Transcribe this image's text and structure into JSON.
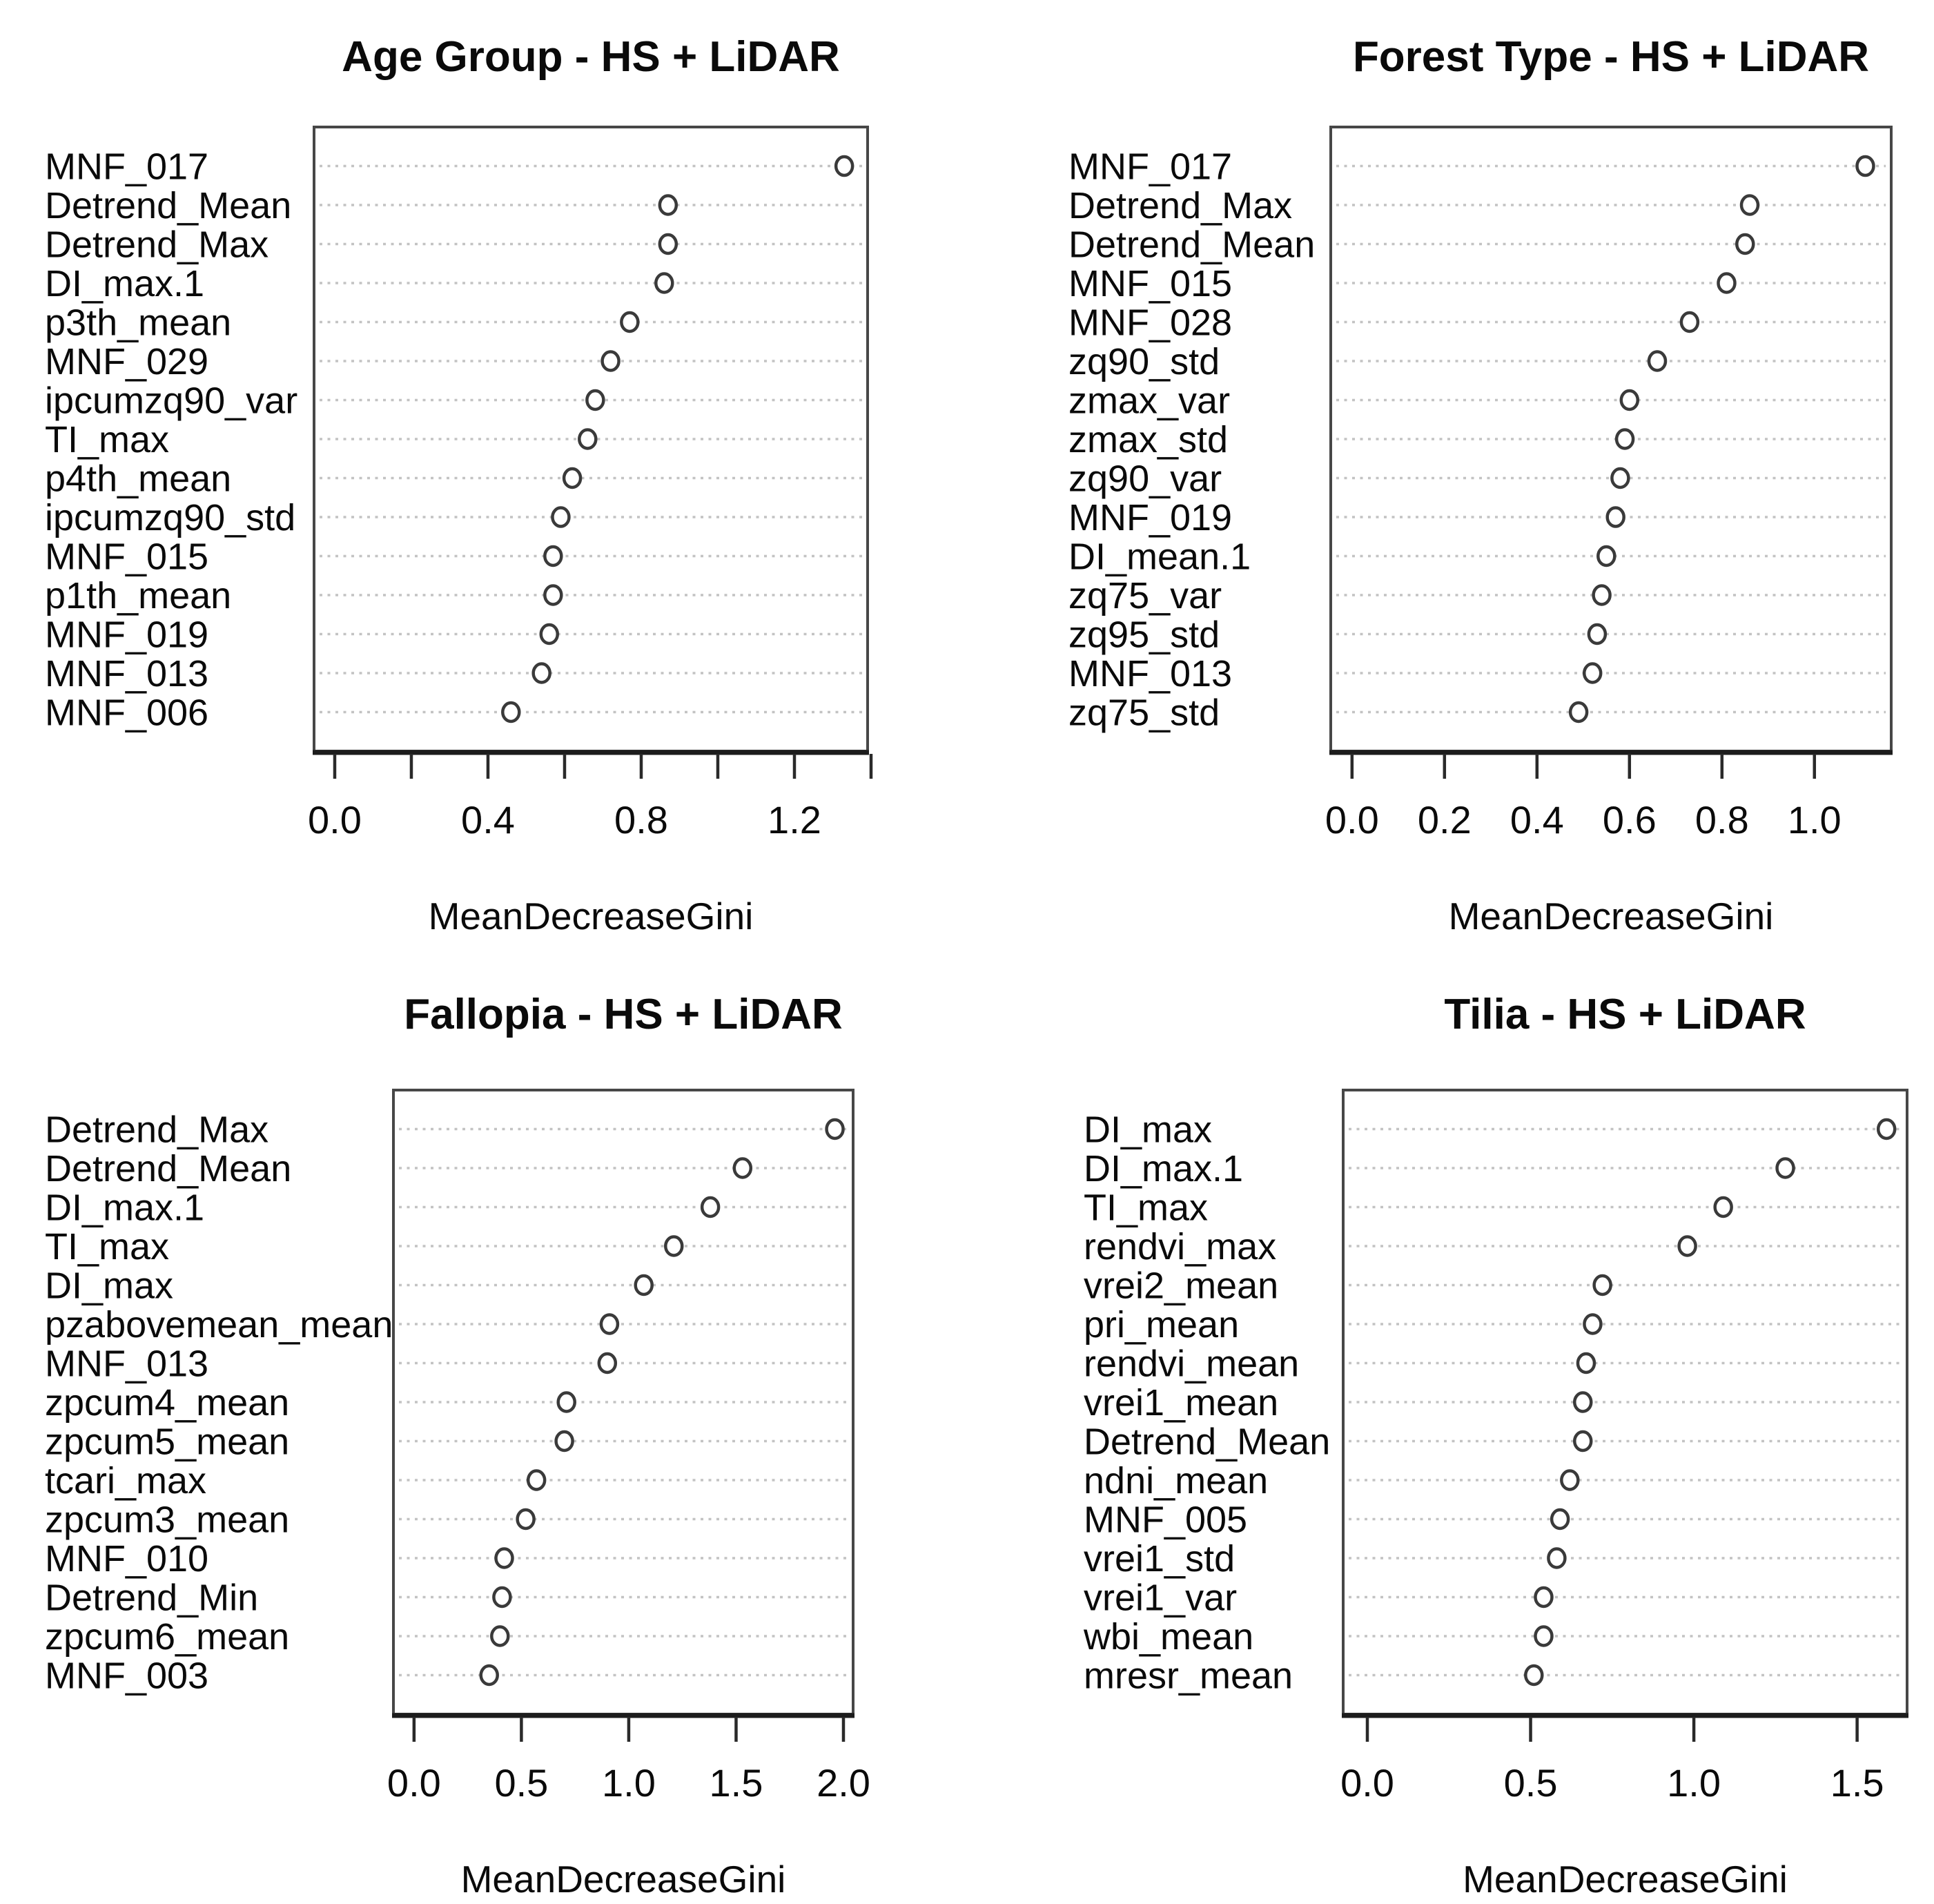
{
  "figure": {
    "layout": "2x2 dot charts",
    "shared_xlabel": "MeanDecreaseGini"
  },
  "colors": {
    "background": "#ffffff",
    "text": "#0a0a0a",
    "dot_stroke": "#3a3a3a",
    "dot_fill": "#ffffff",
    "gridline": "#c3c3c3",
    "box_border": "#474747",
    "axis_line": "#1c1c1c",
    "tick": "#2a2a2a"
  },
  "chart_data": [
    {
      "type": "scatter",
      "variant": "dot_chart",
      "title": "Age Group - HS + LiDAR",
      "xlabel": "MeanDecreaseGini",
      "ylabel": "",
      "grid": "horizontal-dotted",
      "legend": "none",
      "categories": [
        "MNF_017",
        "Detrend_Mean",
        "Detrend_Max",
        "DI_max.1",
        "p3th_mean",
        "MNF_029",
        "ipcumzq90_var",
        "TI_max",
        "p4th_mean",
        "ipcumzq90_std",
        "MNF_015",
        "p1th_mean",
        "MNF_019",
        "MNF_013",
        "MNF_006"
      ],
      "values": [
        1.33,
        0.87,
        0.87,
        0.86,
        0.77,
        0.72,
        0.68,
        0.66,
        0.62,
        0.59,
        0.57,
        0.57,
        0.56,
        0.54,
        0.46
      ],
      "xlim": [
        -0.054,
        1.391
      ],
      "xticks": [
        0,
        0.2,
        0.4,
        0.6,
        0.8,
        1,
        1.2,
        1.4
      ],
      "xtick_labels": [
        "0.0",
        "",
        "0.4",
        "",
        "0.8",
        "",
        "1.2",
        ""
      ]
    },
    {
      "type": "scatter",
      "variant": "dot_chart",
      "title": "Forest Type - HS + LiDAR",
      "xlabel": "MeanDecreaseGini",
      "ylabel": "",
      "grid": "horizontal-dotted",
      "legend": "none",
      "categories": [
        "MNF_017",
        "Detrend_Max",
        "Detrend_Mean",
        "MNF_015",
        "MNF_028",
        "zq90_std",
        "zmax_var",
        "zmax_std",
        "zq90_var",
        "MNF_019",
        "DI_mean.1",
        "zq75_var",
        "zq95_std",
        "MNF_013",
        "zq75_std"
      ],
      "values": [
        1.11,
        0.86,
        0.85,
        0.81,
        0.73,
        0.66,
        0.6,
        0.59,
        0.58,
        0.57,
        0.55,
        0.54,
        0.53,
        0.52,
        0.49
      ],
      "xlim": [
        -0.046,
        1.166
      ],
      "xticks": [
        0,
        0.2,
        0.4,
        0.6,
        0.8,
        1
      ],
      "xtick_labels": [
        "0.0",
        "0.2",
        "0.4",
        "0.6",
        "0.8",
        "1.0"
      ]
    },
    {
      "type": "scatter",
      "variant": "dot_chart",
      "title": "Fallopia - HS + LiDAR",
      "xlabel": "MeanDecreaseGini",
      "ylabel": "",
      "grid": "horizontal-dotted",
      "legend": "none",
      "categories": [
        "Detrend_Max",
        "Detrend_Mean",
        "DI_max.1",
        "TI_max",
        "DI_max",
        "pzabovemean_mean",
        "MNF_013",
        "zpcum4_mean",
        "zpcum5_mean",
        "tcari_max",
        "zpcum3_mean",
        "MNF_010",
        "Detrend_Min",
        "zpcum6_mean",
        "MNF_003"
      ],
      "values": [
        1.96,
        1.53,
        1.38,
        1.21,
        1.07,
        0.91,
        0.9,
        0.71,
        0.7,
        0.57,
        0.52,
        0.42,
        0.41,
        0.4,
        0.35
      ],
      "xlim": [
        -0.096,
        2.045
      ],
      "xticks": [
        0,
        0.5,
        1,
        1.5,
        2
      ],
      "xtick_labels": [
        "0.0",
        "0.5",
        "1.0",
        "1.5",
        "2.0"
      ]
    },
    {
      "type": "scatter",
      "variant": "dot_chart",
      "title": "Tilia - HS + LiDAR",
      "xlabel": "MeanDecreaseGini",
      "ylabel": "",
      "grid": "horizontal-dotted",
      "legend": "none",
      "categories": [
        "DI_max",
        "DI_max.1",
        "TI_max",
        "rendvi_max",
        "vrei2_mean",
        "pri_mean",
        "rendvi_mean",
        "vrei1_mean",
        "Detrend_Mean",
        "ndni_mean",
        "MNF_005",
        "vrei1_std",
        "vrei1_var",
        "wbi_mean",
        "mresr_mean"
      ],
      "values": [
        1.59,
        1.28,
        1.09,
        0.98,
        0.72,
        0.69,
        0.67,
        0.66,
        0.66,
        0.62,
        0.59,
        0.58,
        0.54,
        0.54,
        0.51
      ],
      "xlim": [
        -0.074,
        1.653
      ],
      "xticks": [
        0,
        0.5,
        1,
        1.5
      ],
      "xtick_labels": [
        "0.0",
        "0.5",
        "1.0",
        "1.5"
      ]
    }
  ]
}
